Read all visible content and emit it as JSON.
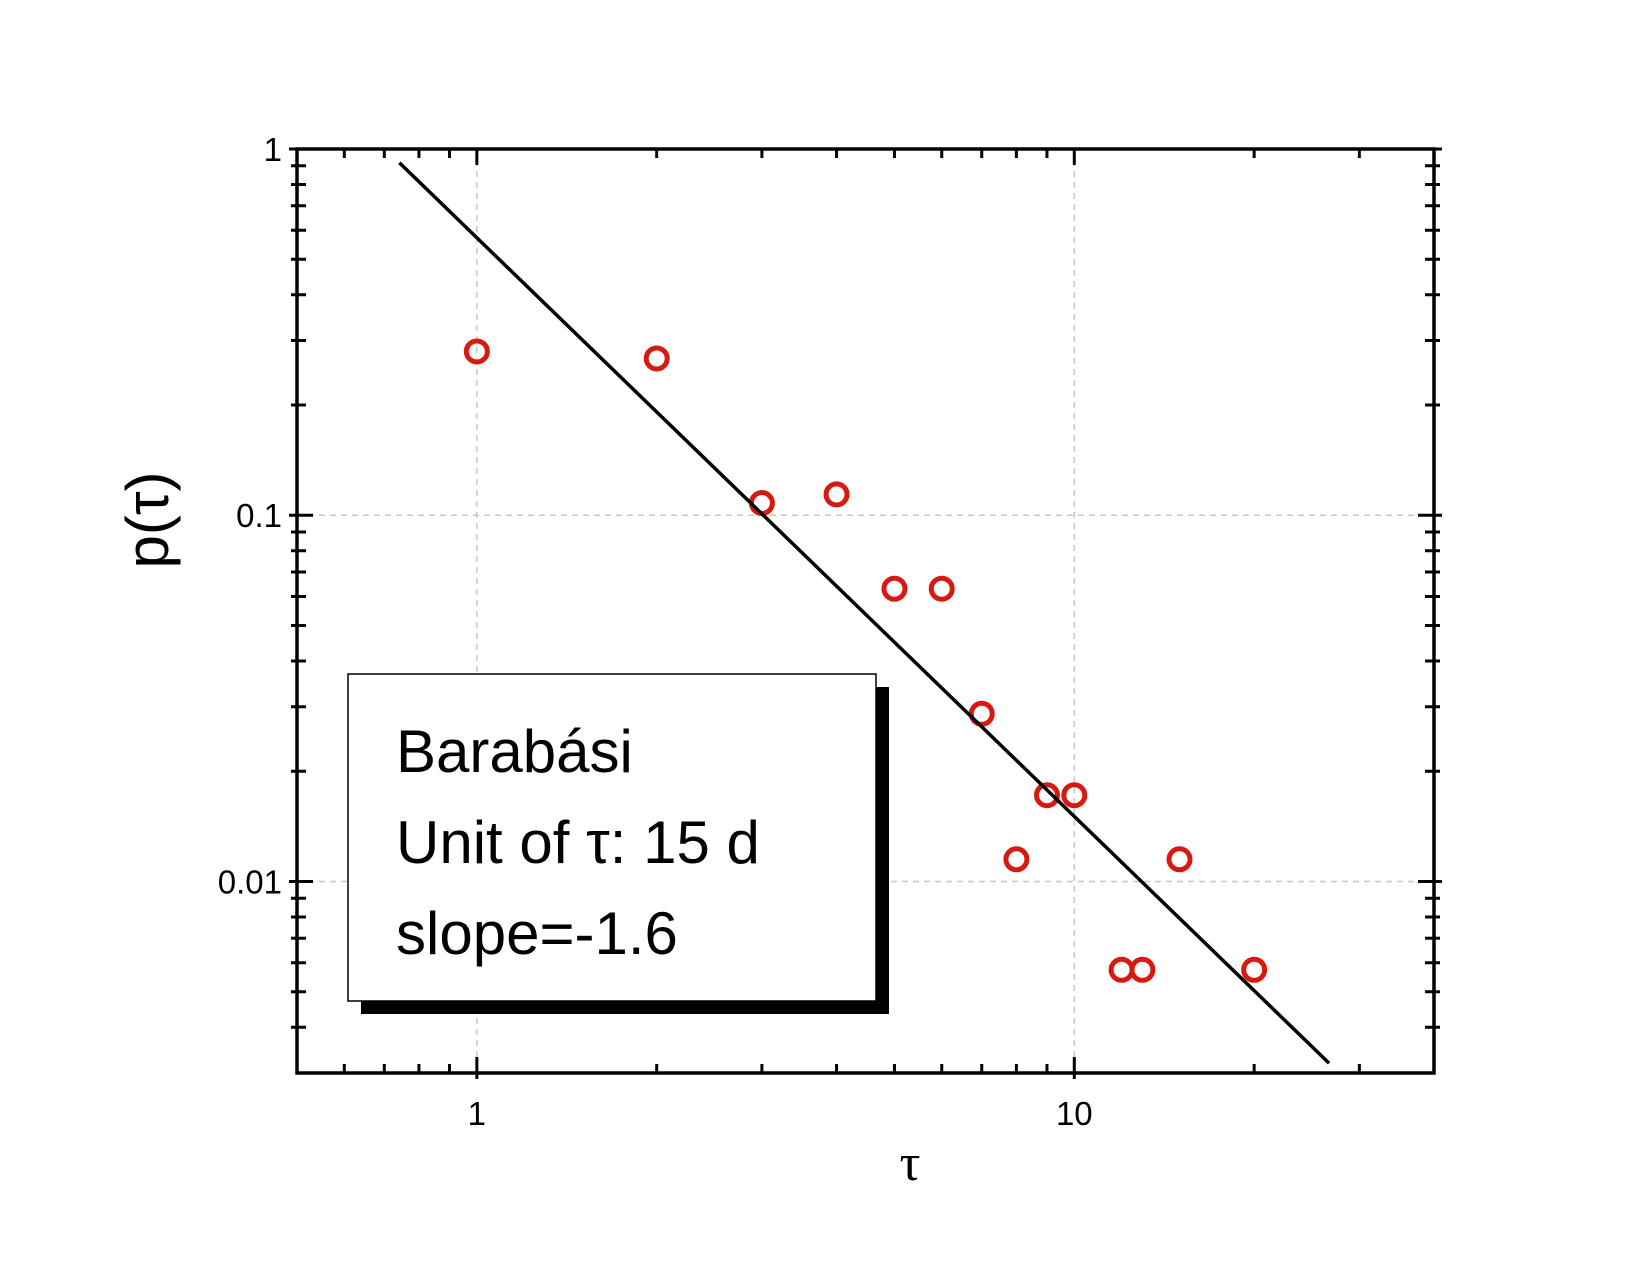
{
  "chart_data": {
    "type": "scatter",
    "x_label": "τ",
    "y_label": "p(τ)",
    "xscale": "log",
    "yscale": "log",
    "xlim": [
      0.5,
      40
    ],
    "ylim": [
      0.003,
      1
    ],
    "xticks": [
      1,
      10
    ],
    "yticks": [
      0.01,
      0.1,
      1
    ],
    "xminorticks": [
      0.6,
      0.7,
      0.8,
      0.9,
      2,
      3,
      4,
      5,
      6,
      7,
      8,
      9,
      20,
      30
    ],
    "yminorticks": [
      0.004,
      0.005,
      0.006,
      0.007,
      0.008,
      0.009,
      0.02,
      0.03,
      0.04,
      0.05,
      0.06,
      0.07,
      0.08,
      0.09,
      0.2,
      0.3,
      0.4,
      0.5,
      0.6,
      0.7,
      0.8,
      0.9
    ],
    "grid": true,
    "series": [
      {
        "mode": "markers",
        "color": "#d7190f",
        "x": [
          1,
          2,
          3,
          4,
          5,
          6,
          7,
          8,
          9,
          10,
          12,
          13,
          15,
          20
        ],
        "values": [
          0.28,
          0.268,
          0.108,
          0.114,
          0.063,
          0.063,
          0.0287,
          0.0115,
          0.0172,
          0.0172,
          0.00574,
          0.00574,
          0.0115,
          0.00574
        ]
      },
      {
        "mode": "line",
        "color": "#000000",
        "x": [
          0.742,
          26.7
        ],
        "values": [
          0.917,
          0.00319
        ]
      }
    ],
    "annotation": [
      "Barabási",
      "Unit of τ: 15 d",
      "slope=-1.6"
    ]
  }
}
